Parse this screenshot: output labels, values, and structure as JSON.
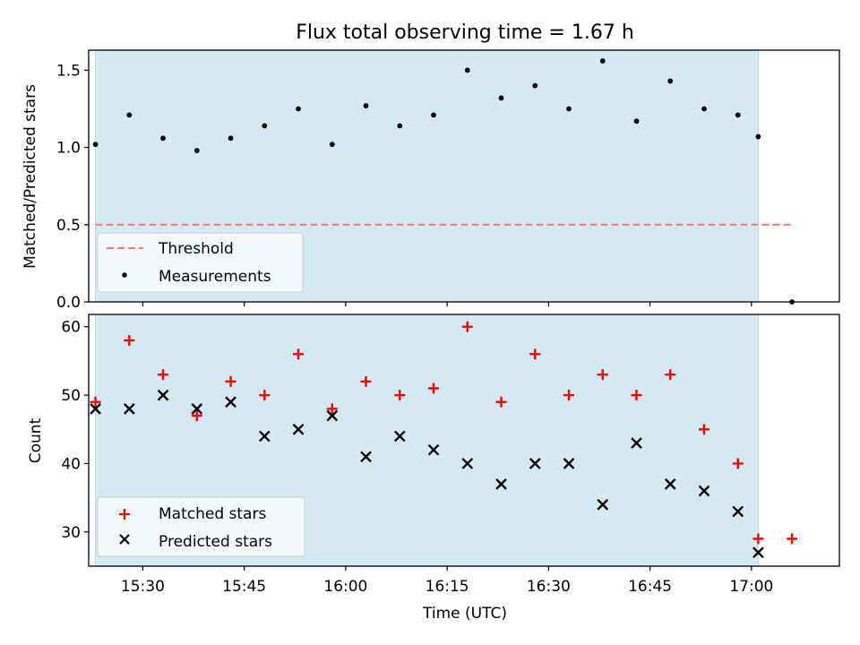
{
  "title": "Flux total observing time = 1.67 h",
  "chart_data": [
    {
      "type": "scatter",
      "ylabel": "Matched/Predicted stars",
      "ylim": [
        0,
        1.63
      ],
      "yticks": [
        "0.0",
        "0.5",
        "1.0",
        "1.5"
      ],
      "yticks_values": [
        0,
        0.5,
        1.0,
        1.5
      ],
      "x_start": "15:22",
      "x_end": "17:13",
      "shaded_range": [
        "15:23",
        "17:01"
      ],
      "shade_color": "#d3eaf0",
      "grid": false,
      "legend_position": "lower-left",
      "series": [
        {
          "name": "Threshold",
          "style": "dashed-line",
          "color": "#f08080",
          "x": [
            "15:23",
            "17:06"
          ],
          "y": [
            0.5,
            0.5
          ]
        },
        {
          "name": "Measurements",
          "style": "dot",
          "color": "#000000",
          "x": [
            "15:23",
            "15:28",
            "15:33",
            "15:38",
            "15:43",
            "15:48",
            "15:53",
            "15:58",
            "16:03",
            "16:08",
            "16:13",
            "16:18",
            "16:23",
            "16:28",
            "16:33",
            "16:38",
            "16:43",
            "16:48",
            "16:53",
            "16:58",
            "17:01",
            "17:06"
          ],
          "y": [
            1.02,
            1.21,
            1.06,
            0.98,
            1.06,
            1.14,
            1.25,
            1.02,
            1.27,
            1.14,
            1.21,
            1.5,
            1.32,
            1.4,
            1.25,
            1.56,
            1.17,
            1.43,
            1.25,
            1.21,
            1.07,
            0.0
          ]
        }
      ]
    },
    {
      "type": "scatter",
      "xlabel": "Time (UTC)",
      "ylabel": "Count",
      "ylim": [
        25,
        61.8
      ],
      "yticks": [
        "30",
        "40",
        "50",
        "60"
      ],
      "yticks_values": [
        30,
        40,
        50,
        60
      ],
      "xticks": [
        "15:30",
        "15:45",
        "16:00",
        "16:15",
        "16:30",
        "16:45",
        "17:00"
      ],
      "x_start": "15:22",
      "x_end": "17:13",
      "shaded_range": [
        "15:23",
        "17:01"
      ],
      "shade_color": "#d3eaf0",
      "grid": false,
      "legend_position": "lower-left",
      "series": [
        {
          "name": "Matched stars",
          "marker": "+",
          "color": "#ff0000",
          "x": [
            "15:23",
            "15:28",
            "15:33",
            "15:38",
            "15:43",
            "15:48",
            "15:53",
            "15:58",
            "16:03",
            "16:08",
            "16:13",
            "16:18",
            "16:23",
            "16:28",
            "16:33",
            "16:38",
            "16:43",
            "16:48",
            "16:53",
            "16:58",
            "17:01",
            "17:06"
          ],
          "y": [
            49,
            58,
            53,
            47,
            52,
            50,
            56,
            48,
            52,
            50,
            51,
            60,
            49,
            56,
            50,
            53,
            50,
            53,
            45,
            40,
            29,
            29
          ]
        },
        {
          "name": "Predicted stars",
          "marker": "x",
          "color": "#000000",
          "x": [
            "15:23",
            "15:28",
            "15:33",
            "15:38",
            "15:43",
            "15:48",
            "15:53",
            "15:58",
            "16:03",
            "16:08",
            "16:13",
            "16:18",
            "16:23",
            "16:28",
            "16:33",
            "16:38",
            "16:43",
            "16:48",
            "16:53",
            "16:58",
            "17:01"
          ],
          "y": [
            48,
            48,
            50,
            48,
            49,
            44,
            45,
            47,
            41,
            44,
            42,
            40,
            37,
            40,
            40,
            34,
            43,
            37,
            36,
            33,
            27
          ]
        }
      ]
    }
  ]
}
